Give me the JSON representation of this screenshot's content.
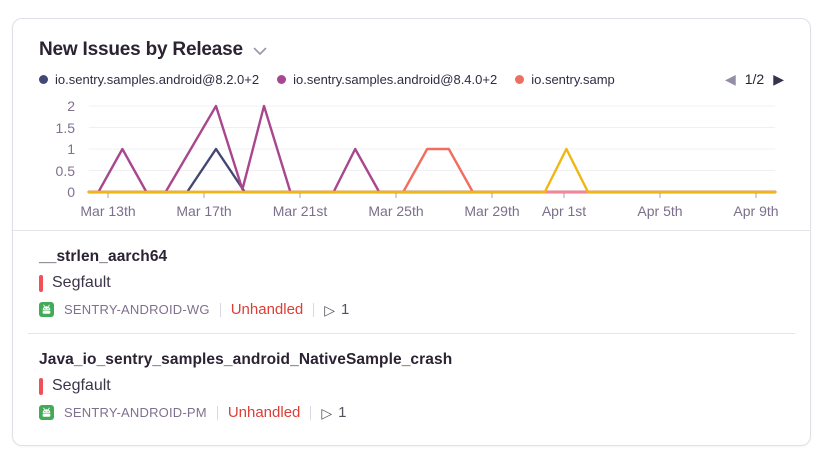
{
  "header": {
    "title": "New Issues by Release"
  },
  "legend": {
    "items": [
      {
        "label": "io.sentry.samples.android@8.2.0+2",
        "color": "#444674"
      },
      {
        "label": "io.sentry.samples.android@8.4.0+2",
        "color": "#a8478d"
      },
      {
        "label": "io.sentry.samp",
        "color": "#f06e5f"
      }
    ],
    "pagination": {
      "label": "1/2",
      "prev_icon": "◀",
      "next_icon": "▶"
    }
  },
  "chart_data": {
    "type": "line",
    "title": "New Issues by Release",
    "ylim": [
      0,
      2
    ],
    "y_ticks": [
      0,
      0.5,
      1,
      1.5,
      2
    ],
    "x_tick_labels": [
      "Mar 13th",
      "Mar 17th",
      "Mar 21st",
      "Mar 25th",
      "Mar 29th",
      "Apr 1st",
      "Apr 5th",
      "Apr 9th"
    ],
    "x_tick_days": [
      1,
      5,
      9,
      13,
      17,
      20,
      24,
      28
    ],
    "x_domain": [
      0.2,
      28.8
    ],
    "grid": "horizontal-faint",
    "legend_position": "top",
    "series": [
      {
        "name": "io.sentry.samples.android@8.2.0+2",
        "color": "#444674",
        "points": [
          [
            0.2,
            0
          ],
          [
            4.3,
            0
          ],
          [
            5.5,
            1
          ],
          [
            6.7,
            0
          ],
          [
            28.8,
            0
          ]
        ]
      },
      {
        "name": "io.sentry.samples.android@8.4.0+2",
        "color": "#a8478d",
        "points": [
          [
            0.2,
            0
          ],
          [
            0.6,
            0
          ],
          [
            1.6,
            1
          ],
          [
            2.6,
            0
          ],
          [
            3.4,
            0
          ],
          [
            5.5,
            2
          ],
          [
            6.6,
            0.06
          ],
          [
            7.5,
            2
          ],
          [
            8.6,
            0
          ],
          [
            10.4,
            0
          ],
          [
            11.3,
            1
          ],
          [
            12.3,
            0
          ],
          [
            28.8,
            0
          ]
        ]
      },
      {
        "name": "io.sentry.samp",
        "color": "#f06e5f",
        "points": [
          [
            0.2,
            0
          ],
          [
            13.3,
            0
          ],
          [
            14.3,
            1
          ],
          [
            15.2,
            1
          ],
          [
            16.2,
            0
          ],
          [
            28.8,
            0
          ]
        ]
      },
      {
        "name": "",
        "color": "#f2879c",
        "points": [
          [
            19.0,
            0
          ],
          [
            21.2,
            0
          ]
        ]
      },
      {
        "name": "",
        "color": "#efb713",
        "points": [
          [
            0.2,
            0
          ],
          [
            19.2,
            0
          ],
          [
            20.1,
            1
          ],
          [
            21.0,
            0
          ],
          [
            28.8,
            0
          ]
        ]
      }
    ]
  },
  "issues": [
    {
      "title": "__strlen_aarch64",
      "type": "Segfault",
      "project": "SENTRY-ANDROID-WG",
      "unhandled_label": "Unhandled",
      "count": "1"
    },
    {
      "title": "Java_io_sentry_samples_android_NativeSample_crash",
      "type": "Segfault",
      "project": "SENTRY-ANDROID-PM",
      "unhandled_label": "Unhandled",
      "count": "1"
    }
  ],
  "colors": {
    "unhandled_red": "#dc3e36",
    "level_bar_red": "#f05056",
    "android_green": "#42ab58",
    "card_border": "#e2dee6",
    "axis_text": "#80708f",
    "title_text": "#2b2233"
  }
}
